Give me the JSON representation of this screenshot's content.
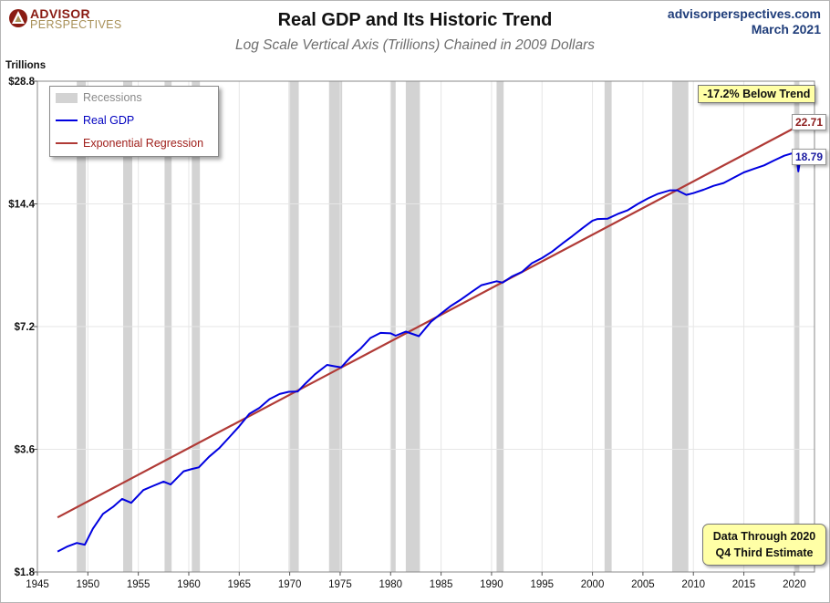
{
  "header": {
    "logo_line1": "ADVISOR",
    "logo_line2": "PERSPECTIVES",
    "title": "Real GDP and Its Historic Trend",
    "subtitle": "Log Scale Vertical Axis (Trillions) Chained in 2009 Dollars",
    "site": "advisorperspectives.com",
    "date": "March 2021"
  },
  "annotations": {
    "below_trend": "-17.2% Below Trend",
    "data_through_line1": "Data Through 2020",
    "data_through_line2": "Q4 Third Estimate",
    "trend_end_value": "22.71",
    "gdp_end_value": "18.79"
  },
  "colors": {
    "gdp": "#0000e0",
    "trend": "#b03a36",
    "recession": "#d3d3d3",
    "logo_red": "#8a1c14",
    "logo_gold": "#a89058",
    "site_blue": "#1f3d7a",
    "note_fill": "#ffffa6"
  },
  "chart_data": {
    "type": "line",
    "title": "Real GDP and Its Historic Trend",
    "subtitle": "Log Scale Vertical Axis (Trillions) Chained in 2009 Dollars",
    "ylabel": "Trillions",
    "xlabel": "",
    "y_scale": "log",
    "ylim": [
      1.8,
      28.8
    ],
    "xlim": [
      1945,
      2022
    ],
    "x_ticks": [
      "1945",
      "1950",
      "1955",
      "1960",
      "1965",
      "1970",
      "1975",
      "1980",
      "1985",
      "1990",
      "1995",
      "2000",
      "2005",
      "2010",
      "2015",
      "2020"
    ],
    "y_ticks": [
      {
        "value": 1.8,
        "label": "$1.8"
      },
      {
        "value": 3.6,
        "label": "$3.6"
      },
      {
        "value": 7.2,
        "label": "$7.2"
      },
      {
        "value": 14.4,
        "label": "$14.4"
      },
      {
        "value": 28.8,
        "label": "$28.8"
      }
    ],
    "grid": true,
    "legend": {
      "position": "top-left",
      "entries": [
        "Recessions",
        "Real GDP",
        "Exponential Regression"
      ]
    },
    "recessions": [
      [
        1948.9,
        1949.8
      ],
      [
        1953.5,
        1954.4
      ],
      [
        1957.6,
        1958.3
      ],
      [
        1960.3,
        1961.1
      ],
      [
        1969.9,
        1970.9
      ],
      [
        1973.9,
        1975.2
      ],
      [
        1980.0,
        1980.5
      ],
      [
        1981.5,
        1982.9
      ],
      [
        1990.5,
        1991.2
      ],
      [
        2001.2,
        2001.9
      ],
      [
        2007.9,
        2009.5
      ],
      [
        2020.0,
        2020.5
      ]
    ],
    "series": [
      {
        "name": "Real GDP",
        "x": [
          1947,
          1948,
          1948.9,
          1949.7,
          1950.5,
          1951.5,
          1952.5,
          1953.4,
          1954.3,
          1955.5,
          1956.5,
          1957.5,
          1958.2,
          1959.5,
          1960.3,
          1961.0,
          1962.0,
          1963.0,
          1964.0,
          1965.0,
          1966.0,
          1967.0,
          1968.0,
          1969.0,
          1969.9,
          1970.8,
          1971.5,
          1972.5,
          1973.7,
          1974.5,
          1975.1,
          1976.0,
          1977.0,
          1978.0,
          1979.0,
          1980.0,
          1980.5,
          1981.5,
          1982.8,
          1984.0,
          1985.0,
          1986.0,
          1987.0,
          1988.0,
          1989.0,
          1990.5,
          1991.1,
          1992.0,
          1993.0,
          1994.0,
          1995.0,
          1996.0,
          1997.0,
          1998.0,
          1999.0,
          2000.0,
          2000.5,
          2001.5,
          2002.5,
          2003.5,
          2004.5,
          2005.5,
          2006.5,
          2007.7,
          2008.4,
          2009.3,
          2010.0,
          2011.0,
          2012.0,
          2013.0,
          2014.0,
          2015.0,
          2016.0,
          2017.0,
          2018.0,
          2019.0,
          2019.9,
          2020.2,
          2020.4,
          2020.6,
          2020.9
        ],
        "values": [
          2.02,
          2.08,
          2.12,
          2.1,
          2.3,
          2.5,
          2.6,
          2.72,
          2.66,
          2.86,
          2.93,
          3.0,
          2.95,
          3.18,
          3.22,
          3.25,
          3.45,
          3.62,
          3.85,
          4.1,
          4.4,
          4.55,
          4.78,
          4.92,
          4.98,
          4.99,
          5.2,
          5.5,
          5.8,
          5.75,
          5.72,
          6.05,
          6.35,
          6.75,
          6.95,
          6.93,
          6.84,
          7.0,
          6.82,
          7.4,
          7.75,
          8.1,
          8.4,
          8.75,
          9.1,
          9.3,
          9.23,
          9.55,
          9.8,
          10.3,
          10.6,
          11.0,
          11.5,
          12.0,
          12.55,
          13.1,
          13.22,
          13.25,
          13.6,
          13.9,
          14.4,
          14.85,
          15.25,
          15.55,
          15.55,
          15.15,
          15.3,
          15.6,
          15.95,
          16.2,
          16.7,
          17.2,
          17.55,
          17.9,
          18.4,
          18.9,
          19.2,
          19.0,
          17.3,
          18.6,
          18.79
        ]
      },
      {
        "name": "Exponential Regression",
        "x": [
          1947,
          2020.9
        ],
        "values": [
          2.45,
          22.71
        ]
      }
    ]
  }
}
